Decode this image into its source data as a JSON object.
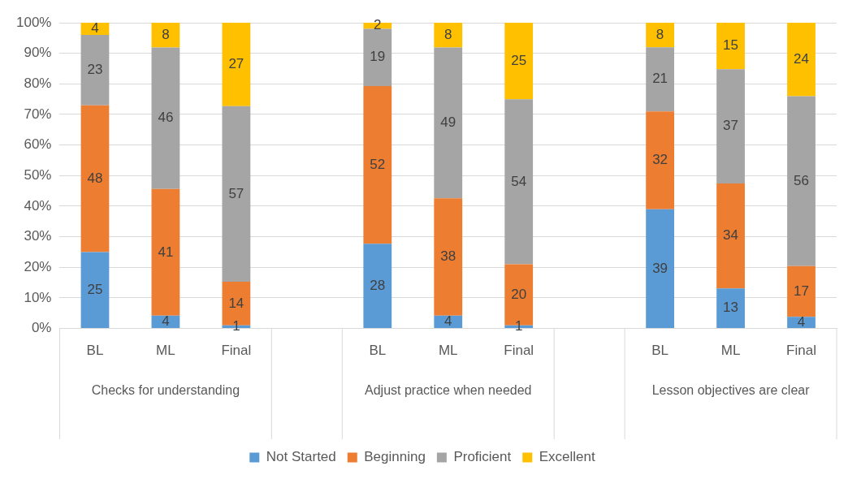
{
  "chart_data": {
    "type": "bar",
    "stacked": true,
    "categories": [
      "BL",
      "ML",
      "Final",
      null,
      "BL",
      "ML",
      "Final",
      null,
      "BL",
      "ML",
      "Final"
    ],
    "series": [
      {
        "name": "Not Started",
        "color": "#5b9bd5",
        "values": [
          25,
          4.2,
          1.0,
          null,
          27.7,
          4.2,
          1,
          null,
          39,
          13.1,
          3.8
        ],
        "value_labels": [
          "25",
          "4",
          "1",
          null,
          "28",
          "4",
          "1",
          null,
          "39",
          "13",
          "4"
        ]
      },
      {
        "name": "Beginning",
        "color": "#ed7d31",
        "values": [
          48,
          41.4,
          14.3,
          null,
          51.6,
          38.4,
          20,
          null,
          32,
          34.3,
          16.6
        ],
        "value_labels": [
          "48",
          "41",
          "14",
          null,
          "52",
          "38",
          "20",
          null,
          "32",
          "34",
          "17"
        ]
      },
      {
        "name": "Proficient",
        "color": "#a5a5a5",
        "values": [
          23,
          46.3,
          57.4,
          null,
          18.7,
          49.3,
          54,
          null,
          21,
          37.4,
          55.6
        ],
        "value_labels": [
          "23",
          "46",
          "57",
          null,
          "19",
          "49",
          "54",
          null,
          "21",
          "37",
          "56"
        ]
      },
      {
        "name": "Excellent",
        "color": "#ffc000",
        "values": [
          4,
          8.1,
          27.3,
          null,
          2.0,
          8.1,
          25,
          null,
          8,
          15.2,
          24.0
        ],
        "value_labels": [
          "4",
          "8",
          "27",
          null,
          "2",
          "8",
          "25",
          null,
          "8",
          "15",
          "24"
        ]
      }
    ],
    "annotations": [
      "Checks for understanding",
      "Adjust practice when needed",
      "Lesson objectives are clear"
    ],
    "ylim": [
      0,
      100
    ],
    "yticks": [
      {
        "value": 0,
        "label": "0%"
      },
      {
        "value": 10,
        "label": "10%"
      },
      {
        "value": 20,
        "label": "20%"
      },
      {
        "value": 30,
        "label": "30%"
      },
      {
        "value": 40,
        "label": "40%"
      },
      {
        "value": 50,
        "label": "50%"
      },
      {
        "value": 60,
        "label": "60%"
      },
      {
        "value": 70,
        "label": "70%"
      },
      {
        "value": 80,
        "label": "80%"
      },
      {
        "value": 90,
        "label": "90%"
      },
      {
        "value": 100,
        "label": "100%"
      }
    ],
    "grid": "y",
    "legend": "bottom"
  }
}
